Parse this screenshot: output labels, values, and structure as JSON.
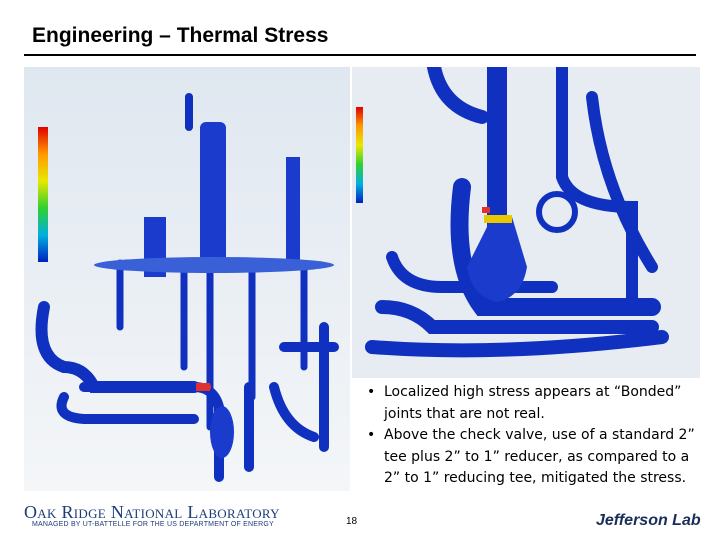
{
  "header": {
    "title": "Engineering – Thermal Stress"
  },
  "bullets": [
    "Localized high stress appears at “Bonded” joints that are not real.",
    "Above the check valve, use of a standard 2” tee plus 2” to 1” reducer, as compared to a 2” to 1” reducing tee, mitigated the stress."
  ],
  "footer": {
    "org": "Oak Ridge National Laboratory",
    "org_subtitle": "MANAGED BY UT-BATTELLE FOR THE US DEPARTMENT OF ENERGY",
    "page_number": "18",
    "partner": "Jefferson Lab"
  }
}
